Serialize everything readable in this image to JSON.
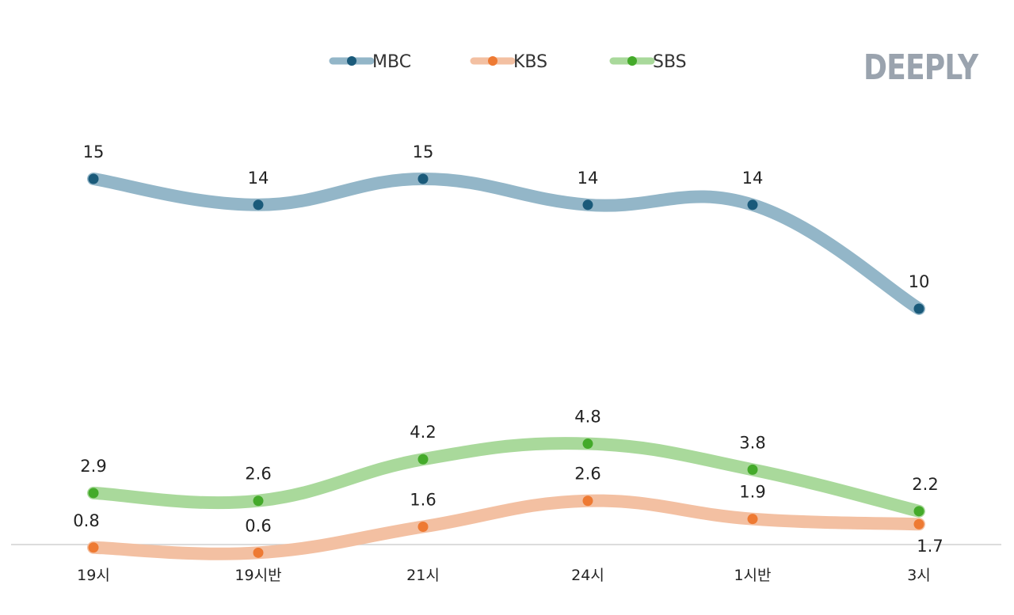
{
  "brand": {
    "logo_text": "DEEPLY"
  },
  "chart_data": {
    "type": "line",
    "categories": [
      "19시",
      "19시반",
      "21시",
      "24시",
      "1시반",
      "3시"
    ],
    "series": [
      {
        "name": "MBC",
        "values": [
          15,
          14,
          15,
          14,
          14,
          10
        ],
        "line_color": "#93b6c8",
        "dot_color": "#1a5a7a"
      },
      {
        "name": "KBS",
        "values": [
          0.8,
          0.6,
          1.6,
          2.6,
          1.9,
          1.7
        ],
        "line_color": "#f3c0a2",
        "dot_color": "#ee7a33"
      },
      {
        "name": "SBS",
        "values": [
          2.9,
          2.6,
          4.2,
          4.8,
          3.8,
          2.2
        ],
        "line_color": "#a9d99b",
        "dot_color": "#44aa2a"
      }
    ],
    "legend_position": "top-center",
    "grid": false,
    "y_axis_labels_shown": false
  }
}
